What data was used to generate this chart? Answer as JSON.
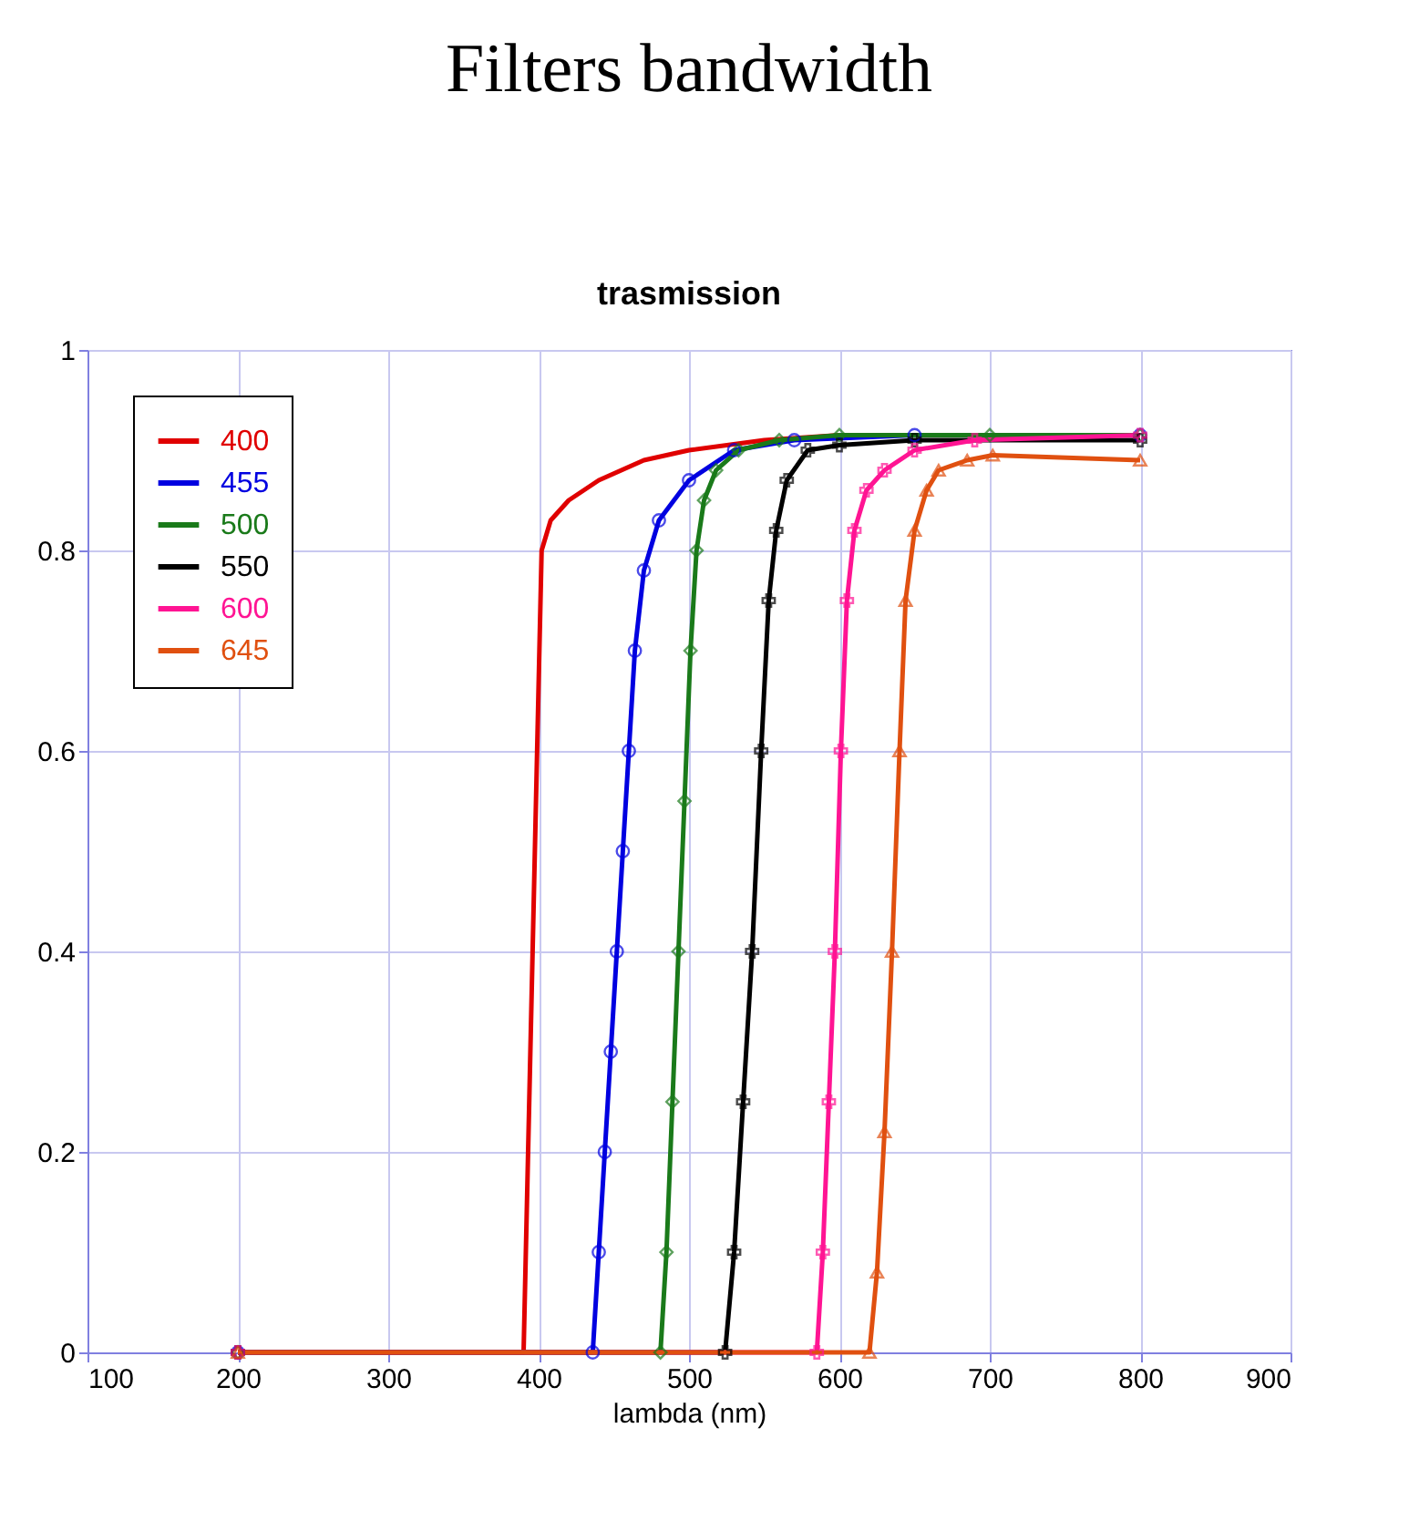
{
  "chart_data": {
    "type": "line",
    "title": "Filters bandwidth",
    "subtitle": "trasmission",
    "xlabel": "lambda (nm)",
    "xlim": [
      100,
      900
    ],
    "xticks": [
      100,
      200,
      300,
      400,
      500,
      600,
      700,
      800,
      900
    ],
    "ylim": [
      0,
      1
    ],
    "yticks": [
      0,
      0.2,
      0.4,
      0.6,
      0.8,
      1
    ],
    "grid": true,
    "legend": "top left",
    "line_style": "solid",
    "series": [
      {
        "name": "400",
        "color": "#e00000",
        "marker": "none",
        "x": [
          200,
          390,
          393,
          396,
          399,
          402,
          408,
          420,
          440,
          470,
          500,
          550,
          600,
          700,
          800
        ],
        "values": [
          0,
          0,
          0.2,
          0.4,
          0.6,
          0.8,
          0.83,
          0.85,
          0.87,
          0.89,
          0.9,
          0.91,
          0.915,
          0.915,
          0.915
        ]
      },
      {
        "name": "455",
        "color": "#0000e0",
        "marker": "circle",
        "x": [
          200,
          436,
          440,
          444,
          448,
          452,
          456,
          460,
          464,
          470,
          480,
          500,
          530,
          570,
          650,
          800
        ],
        "values": [
          0,
          0,
          0.1,
          0.2,
          0.3,
          0.4,
          0.5,
          0.6,
          0.7,
          0.78,
          0.83,
          0.87,
          0.9,
          0.91,
          0.915,
          0.915
        ]
      },
      {
        "name": "500",
        "color": "#1a7a1a",
        "marker": "diamond",
        "x": [
          200,
          481,
          485,
          489,
          493,
          497,
          501,
          505,
          510,
          518,
          533,
          560,
          600,
          700,
          800
        ],
        "values": [
          0,
          0,
          0.1,
          0.25,
          0.4,
          0.55,
          0.7,
          0.8,
          0.85,
          0.88,
          0.9,
          0.91,
          0.915,
          0.915,
          0.915
        ]
      },
      {
        "name": "550",
        "color": "#000000",
        "marker": "cross",
        "x": [
          200,
          524,
          530,
          536,
          542,
          548,
          553,
          558,
          565,
          579,
          600,
          650,
          800
        ],
        "values": [
          0,
          0,
          0.1,
          0.25,
          0.4,
          0.6,
          0.75,
          0.82,
          0.87,
          0.9,
          0.905,
          0.91,
          0.91
        ]
      },
      {
        "name": "600",
        "color": "#ff1493",
        "marker": "cross",
        "x": [
          200,
          585,
          589,
          593,
          597,
          601,
          605,
          610,
          618,
          630,
          650,
          690,
          800
        ],
        "values": [
          0,
          0,
          0.1,
          0.25,
          0.4,
          0.6,
          0.75,
          0.82,
          0.86,
          0.88,
          0.9,
          0.91,
          0.915
        ]
      },
      {
        "name": "645",
        "color": "#e05010",
        "marker": "triangle",
        "x": [
          200,
          620,
          625,
          630,
          635,
          640,
          644,
          650,
          658,
          666,
          685,
          702,
          800
        ],
        "values": [
          0,
          0,
          0.08,
          0.22,
          0.4,
          0.6,
          0.75,
          0.82,
          0.86,
          0.88,
          0.89,
          0.895,
          0.89
        ]
      }
    ]
  }
}
